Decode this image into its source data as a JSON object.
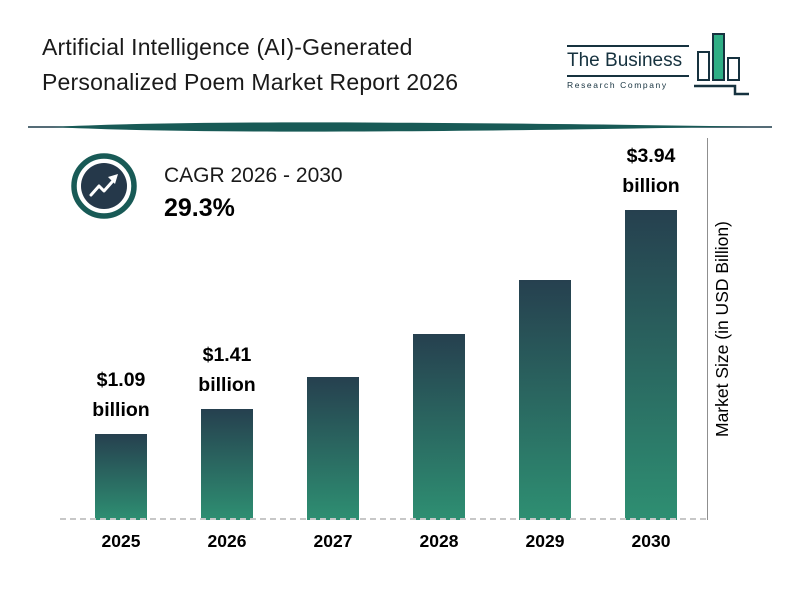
{
  "header": {
    "title_line1": "Artificial Intelligence (AI)-Generated",
    "title_line2": "Personalized Poem Market Report 2026",
    "logo": {
      "name": "The Business",
      "subname": "Research Company"
    }
  },
  "cagr": {
    "label": "CAGR 2026 - 2030",
    "value": "29.3%"
  },
  "chart_data": {
    "type": "bar",
    "title": "Artificial Intelligence (AI)-Generated Personalized Poem Market Report 2026",
    "categories": [
      "2025",
      "2026",
      "2027",
      "2028",
      "2029",
      "2030"
    ],
    "values": [
      1.09,
      1.41,
      1.82,
      2.36,
      3.05,
      3.94
    ],
    "value_labels": [
      {
        "amount": "$1.09",
        "unit": "billion"
      },
      {
        "amount": "$1.41",
        "unit": "billion"
      },
      null,
      null,
      null,
      {
        "amount": "$3.94",
        "unit": "billion"
      }
    ],
    "unit": "USD Billion",
    "xlabel": "",
    "ylabel": "Market Size (in USD Billion)",
    "ylim": [
      0,
      4
    ],
    "grid": false,
    "legend": "none",
    "annotations": [
      "CAGR 2026 - 2030: 29.3%"
    ],
    "bar_gradient_top": "#26404f",
    "bar_gradient_bottom": "#2e8f72"
  },
  "colors": {
    "accent_teal": "#185a56",
    "dark_navy": "#25384a",
    "logo_green": "#2fae85",
    "text": "#111111"
  }
}
